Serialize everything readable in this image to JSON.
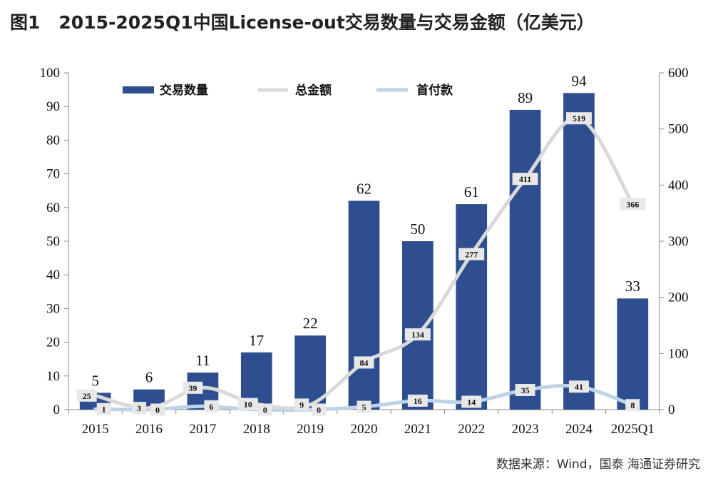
{
  "header": {
    "figure_label": "图1",
    "title": "2015-2025Q1中国License-out交易数量与交易金额（亿美元）"
  },
  "footer": {
    "source": "数据来源：Wind，国泰 海通证券研究"
  },
  "chart_data": {
    "type": "bar",
    "categories": [
      "2015",
      "2016",
      "2017",
      "2018",
      "2019",
      "2020",
      "2021",
      "2022",
      "2023",
      "2024",
      "2025Q1"
    ],
    "series": [
      {
        "name": "交易数量",
        "type": "bar",
        "axis": "left",
        "color": "#2e4e8f",
        "values": [
          5,
          6,
          11,
          17,
          22,
          62,
          50,
          61,
          89,
          94,
          33
        ]
      },
      {
        "name": "总金额",
        "type": "line",
        "axis": "right",
        "color": "#d9d9d9",
        "values": [
          25,
          3,
          39,
          10,
          9,
          84,
          134,
          277,
          411,
          519,
          366
        ]
      },
      {
        "name": "首付款",
        "type": "line",
        "axis": "right",
        "color": "#bcd3e8",
        "values": [
          1,
          0,
          6,
          0,
          0,
          5,
          16,
          14,
          35,
          41,
          8
        ]
      }
    ],
    "left_axis": {
      "min": 0,
      "max": 100,
      "ticks": [
        0,
        10,
        20,
        30,
        40,
        50,
        60,
        70,
        80,
        90,
        100
      ]
    },
    "right_axis": {
      "min": 0,
      "max": 600,
      "ticks": [
        0,
        100,
        200,
        300,
        400,
        500,
        600
      ]
    },
    "legend": {
      "placement": "top-center"
    },
    "grid": false
  }
}
